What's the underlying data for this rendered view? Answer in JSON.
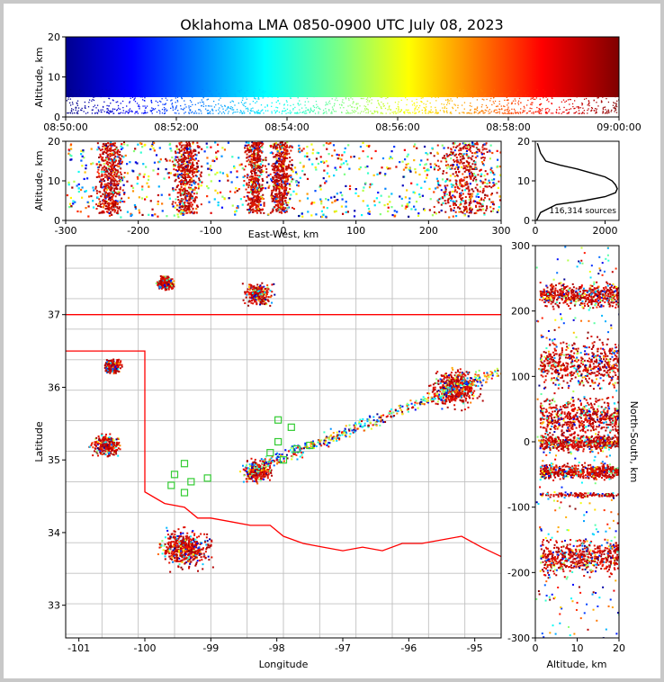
{
  "chart_data": [
    {
      "type": "scatter",
      "panel": "altitude-vs-time",
      "title": "Oklahoma LMA 0850-0900 UTC July 08, 2023",
      "ylabel": "Altitude, km",
      "ylim": [
        0,
        20
      ],
      "yticks": [
        "0",
        "10",
        "20"
      ],
      "xlim": [
        "08:50:00",
        "09:00:00"
      ],
      "xticks": [
        "08:50:00",
        "08:52:00",
        "08:54:00",
        "08:56:00",
        "08:58:00",
        "09:00:00"
      ],
      "color_encoding": "time (blue to dark red)",
      "altitude_band_km": [
        3,
        20
      ]
    },
    {
      "type": "scatter",
      "panel": "altitude-vs-east-west",
      "xlabel": "East-West, km",
      "ylabel": "Altitude, km",
      "xlim": [
        -300,
        300
      ],
      "ylim": [
        0,
        20
      ],
      "xticks": [
        "-300",
        "-200",
        "-100",
        "0",
        "100",
        "200",
        "300"
      ],
      "yticks": [
        "0",
        "10",
        "20"
      ],
      "clusters": [
        {
          "x": -240,
          "width": 40,
          "density": "high"
        },
        {
          "x": -135,
          "width": 40,
          "density": "high"
        },
        {
          "x": -40,
          "width": 30,
          "density": "high"
        },
        {
          "x": -5,
          "width": 35,
          "density": "high"
        },
        {
          "x": 250,
          "width": 100,
          "density": "high"
        }
      ]
    },
    {
      "type": "line",
      "panel": "altitude-histogram",
      "annotation": "116,314 sources",
      "xlim": [
        0,
        2400
      ],
      "ylim": [
        0,
        20
      ],
      "xticks": [
        "0",
        "2000"
      ],
      "yticks": [
        "0",
        "10",
        "20"
      ],
      "series": [
        {
          "x": [
            40,
            150,
            600,
            1400,
            2000,
            2300,
            2350,
            2300,
            2200,
            2000,
            1600,
            1200,
            700,
            300,
            150,
            60
          ],
          "y": [
            0,
            2,
            4,
            5,
            6,
            7,
            8,
            9,
            10,
            11,
            12,
            13,
            14,
            15,
            17,
            19.5
          ]
        }
      ]
    },
    {
      "type": "scatter",
      "panel": "plan-view-map",
      "xlabel": "Longitude",
      "ylabel": "Latitude",
      "xlim": [
        -101.2,
        -94.6
      ],
      "ylim": [
        32.55,
        37.95
      ],
      "xticks": [
        "-101",
        "-100",
        "-99",
        "-98",
        "-97",
        "-96",
        "-95"
      ],
      "yticks": [
        "33",
        "34",
        "35",
        "36",
        "37"
      ],
      "clusters": [
        {
          "lon": -99.7,
          "lat": 37.45,
          "extent": "small"
        },
        {
          "lon": -98.3,
          "lat": 37.3,
          "extent": "medium"
        },
        {
          "lon": -100.5,
          "lat": 36.3,
          "extent": "small"
        },
        {
          "lon": -100.6,
          "lat": 35.2,
          "extent": "medium"
        },
        {
          "lon": -98.3,
          "lat": 34.85,
          "extent": "medium"
        },
        {
          "lon": -99.4,
          "lat": 33.8,
          "extent": "large"
        },
        {
          "lon": -95.3,
          "lat": 36.0,
          "extent": "large"
        }
      ],
      "border_color": "#ff0000",
      "county_color": "#c0c0c0",
      "station_color": "#33cc33",
      "stations": [
        {
          "lon": -97.98,
          "lat": 35.55
        },
        {
          "lon": -97.78,
          "lat": 35.45
        },
        {
          "lon": -97.98,
          "lat": 35.25
        },
        {
          "lon": -97.5,
          "lat": 35.2
        },
        {
          "lon": -97.7,
          "lat": 35.15
        },
        {
          "lon": -98.1,
          "lat": 35.1
        },
        {
          "lon": -97.9,
          "lat": 35.0
        },
        {
          "lon": -99.4,
          "lat": 34.95
        },
        {
          "lon": -99.55,
          "lat": 34.8
        },
        {
          "lon": -99.3,
          "lat": 34.7
        },
        {
          "lon": -99.6,
          "lat": 34.65
        },
        {
          "lon": -99.4,
          "lat": 34.55
        },
        {
          "lon": -99.05,
          "lat": 34.75
        }
      ]
    },
    {
      "type": "scatter",
      "panel": "north-south-vs-altitude",
      "xlabel": "Altitude, km",
      "ylabel": "North-South, km",
      "xlim": [
        0,
        20
      ],
      "ylim": [
        -300,
        300
      ],
      "xticks": [
        "0",
        "10",
        "20"
      ],
      "yticks": [
        "-300",
        "-200",
        "-100",
        "0",
        "100",
        "200",
        "300"
      ],
      "clusters": [
        {
          "y": 225,
          "height": 40,
          "density": "high"
        },
        {
          "y": 120,
          "height": 80,
          "density": "high"
        },
        {
          "y": 40,
          "height": 60,
          "density": "high"
        },
        {
          "y": 0,
          "height": 30,
          "density": "high"
        },
        {
          "y": -45,
          "height": 25,
          "density": "high"
        },
        {
          "y": -80,
          "height": 8,
          "density": "medium"
        },
        {
          "y": -175,
          "height": 60,
          "density": "high"
        }
      ]
    }
  ]
}
